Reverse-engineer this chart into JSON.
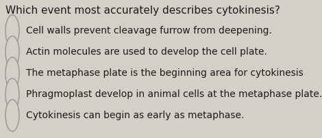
{
  "background_color": "#d4cfc7",
  "question": "Which event most accurately describes cytokinesis?",
  "question_fontsize": 11.0,
  "options": [
    "Cell walls prevent cleavage furrow from deepening.",
    "Actin molecules are used to develop the cell plate.",
    "The metaphase plate is the beginning area for cytokinesis",
    "Phragmoplast develop in animal cells at the metaphase plate.",
    "Cytokinesis can begin as early as metaphase."
  ],
  "option_fontsize": 10.0,
  "text_color": "#1a1a1a",
  "circle_edge_color": "#999999",
  "circle_face_color": "#d4cfc7",
  "circle_linewidth": 1.1
}
